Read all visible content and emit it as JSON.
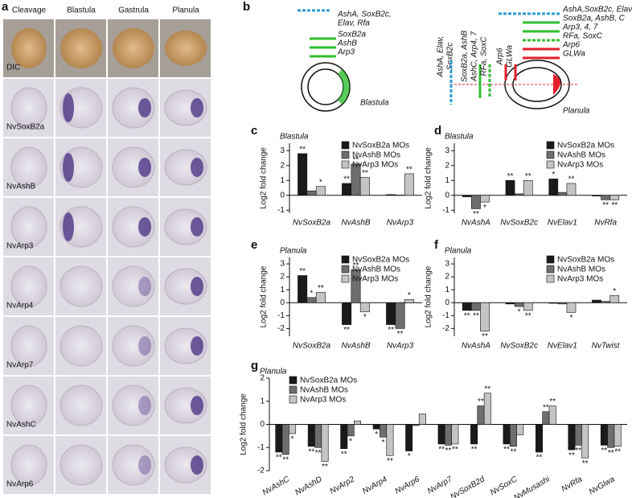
{
  "panel_a": {
    "label": "a",
    "columns": [
      "Cleavage",
      "Blastula",
      "Gastrula",
      "Planula"
    ],
    "rows": [
      "DIC",
      "NvSoxB2a",
      "NvAshB",
      "NvArp3",
      "NvArp4",
      "NvArp7",
      "NvAshC",
      "NvArp6"
    ]
  },
  "panel_b": {
    "label": "b",
    "blastula": {
      "name": "Blastula",
      "labels": [
        {
          "text": "AshA, SoxB2c,",
          "color": "#2a9bd6"
        },
        {
          "text": "Elav, Rfa",
          "color": "#2a9bd6"
        },
        {
          "text": "SoxB2a",
          "color": "#2fbf2f"
        },
        {
          "text": "AshB",
          "color": "#2fbf2f"
        },
        {
          "text": "Arp3",
          "color": "#2fbf2f"
        }
      ]
    },
    "planula": {
      "name": "Planula",
      "vertical_labels": [
        {
          "text": "AshA, Elav,",
          "color": "#2a9bd6"
        },
        {
          "text": "SoxB2c",
          "color": "#2a9bd6"
        },
        {
          "text": "SoxB2a, AshB",
          "color": "#2fbf2f"
        },
        {
          "text": "AshC, Arp4, 7",
          "color": "#2fbf2f"
        },
        {
          "text": "RFa, SoxC",
          "color": "#2fbf2f"
        },
        {
          "text": "Arp6",
          "color": "#e0202a"
        },
        {
          "text": "GLWa",
          "color": "#e0202a"
        }
      ],
      "side_labels": [
        {
          "text": "AshA,SoxB2c, Elav",
          "color": "#2a9bd6"
        },
        {
          "text": "SoxB2a, AshB, C",
          "color": "#2fbf2f"
        },
        {
          "text": "Arp3, 4, 7",
          "color": "#2fbf2f"
        },
        {
          "text": "RFa, SoxC",
          "color": "#2fbf2f"
        },
        {
          "text": "Arp6",
          "color": "#e0202a"
        },
        {
          "text": "GLWa",
          "color": "#e0202a"
        }
      ]
    }
  },
  "chart_data": [
    {
      "type": "bar",
      "panel": "c",
      "title": "Blastula",
      "y_label": "Log2 fold change",
      "legend": "upper right",
      "categories": [
        "NvSoxB2a",
        "NvAshB",
        "NvArp3"
      ],
      "ylim": [
        -1.2,
        3.5
      ],
      "yticks": [
        -1,
        0,
        1,
        2,
        3
      ],
      "series": [
        {
          "name": "NvSoxB2a MOs",
          "color": "#1a1a1a",
          "values": [
            2.8,
            0.8,
            0.05
          ],
          "significance": [
            "**",
            "**",
            null
          ]
        },
        {
          "name": "NvAshB MOs",
          "color": "#6e6e6e",
          "values": [
            0.3,
            2.1,
            0.02
          ],
          "significance": [
            null,
            "**",
            null
          ]
        },
        {
          "name": "NvArp3 MOs",
          "color": "#c4c4c4",
          "values": [
            0.6,
            1.2,
            1.45
          ],
          "significance": [
            "*",
            "**",
            "**"
          ]
        }
      ]
    },
    {
      "type": "bar",
      "panel": "d",
      "title": "Blastula",
      "y_label": "Log2 fold change",
      "legend": "upper right",
      "categories": [
        "NvAshA",
        "NvSoxB2c",
        "NvElav1",
        "NvRfa"
      ],
      "ylim": [
        -1.2,
        3.5
      ],
      "yticks": [
        -1,
        0,
        1,
        2,
        3
      ],
      "series": [
        {
          "name": "NvSoxB2a MOs",
          "color": "#1a1a1a",
          "values": [
            -0.1,
            1.0,
            1.1,
            -0.05
          ],
          "significance": [
            null,
            "**",
            "*",
            null
          ]
        },
        {
          "name": "NvAshB MOs",
          "color": "#6e6e6e",
          "values": [
            -0.9,
            0.1,
            0.2,
            -0.3
          ],
          "significance": [
            "**",
            null,
            null,
            "**"
          ]
        },
        {
          "name": "NvArp3 MOs",
          "color": "#c4c4c4",
          "values": [
            -0.45,
            1.0,
            0.8,
            -0.3
          ],
          "significance": [
            "*",
            "**",
            "**",
            "**"
          ]
        }
      ]
    },
    {
      "type": "bar",
      "panel": "e",
      "title": "Planula",
      "y_label": "Log2 fold change",
      "legend": "upper right",
      "categories": [
        "NvSoxB2a",
        "NvAshB",
        "NvArp3"
      ],
      "ylim": [
        -2.6,
        3.5
      ],
      "yticks": [
        -2,
        -1,
        0,
        1,
        2,
        3
      ],
      "series": [
        {
          "name": "NvSoxB2a MOs",
          "color": "#1a1a1a",
          "values": [
            2.1,
            -1.7,
            -1.7
          ],
          "significance": [
            "**",
            "**",
            "**"
          ]
        },
        {
          "name": "NvAshB MOs",
          "color": "#6e6e6e",
          "values": [
            0.4,
            2.55,
            -2.0
          ],
          "significance": [
            "*",
            "**",
            "**"
          ]
        },
        {
          "name": "NvArp3 MOs",
          "color": "#c4c4c4",
          "values": [
            0.8,
            -0.7,
            0.25
          ],
          "significance": [
            "**",
            "*",
            "*"
          ]
        }
      ]
    },
    {
      "type": "bar",
      "panel": "f",
      "title": "Planula",
      "y_label": "Log2 fold change",
      "legend": "upper right",
      "categories": [
        "NvAshA",
        "NvSoxB2c",
        "NvElav1",
        "NvTwist"
      ],
      "ylim": [
        -2.6,
        3.5
      ],
      "yticks": [
        -2,
        -1,
        0,
        1,
        2,
        3
      ],
      "series": [
        {
          "name": "NvSoxB2a MOs",
          "color": "#1a1a1a",
          "values": [
            -0.6,
            -0.1,
            -0.05,
            0.2
          ],
          "significance": [
            "**",
            null,
            null,
            null
          ]
        },
        {
          "name": "NvAshB MOs",
          "color": "#6e6e6e",
          "values": [
            -0.6,
            -0.3,
            -0.1,
            0.1
          ],
          "significance": [
            "**",
            "*",
            null,
            null
          ]
        },
        {
          "name": "NvArp3 MOs",
          "color": "#c4c4c4",
          "values": [
            -2.2,
            -0.6,
            -0.75,
            0.55
          ],
          "significance": [
            "**",
            "**",
            "*",
            "*"
          ]
        }
      ]
    },
    {
      "type": "bar",
      "panel": "g",
      "title": "Planula",
      "y_label": "Log2 fold change",
      "legend": "upper left",
      "categories": [
        "NvAshC",
        "NvAshD",
        "NvArp2",
        "NvArp4",
        "NvArp6",
        "NvArp7",
        "NvSoxB2d",
        "NvSoxC",
        "NvMusashi",
        "NvRfa",
        "NvGlwa"
      ],
      "ylim": [
        -2,
        2
      ],
      "yticks": [
        -2,
        -1,
        0,
        1,
        2
      ],
      "series": [
        {
          "name": "NvSoxB2a MOs",
          "color": "#1a1a1a",
          "values": [
            -1.2,
            -0.95,
            -1.05,
            -0.2,
            -1.15,
            -0.85,
            -0.85,
            -0.85,
            -1.2,
            -1.1,
            -0.9
          ],
          "significance": [
            "**",
            "**",
            "**",
            "*",
            "*",
            "**",
            "**",
            "**",
            "**",
            "**",
            "**"
          ]
        },
        {
          "name": "NvAshB MOs",
          "color": "#6e6e6e",
          "values": [
            -1.3,
            -1.0,
            -0.5,
            -0.55,
            -0.05,
            -0.9,
            0.8,
            -0.95,
            0.55,
            -0.9,
            -1.0
          ],
          "significance": [
            "**",
            "**",
            "*",
            "*",
            null,
            "**",
            "**",
            "**",
            "**",
            "**",
            "**"
          ]
        },
        {
          "name": "NvArp3 MOs",
          "color": "#c4c4c4",
          "values": [
            -0.4,
            -1.6,
            0.15,
            -1.35,
            0.45,
            -0.85,
            1.35,
            -0.45,
            0.8,
            -1.45,
            -0.95
          ],
          "significance": [
            "*",
            "**",
            null,
            "**",
            null,
            "**",
            "**",
            null,
            "**",
            "**",
            "**"
          ]
        }
      ]
    }
  ]
}
